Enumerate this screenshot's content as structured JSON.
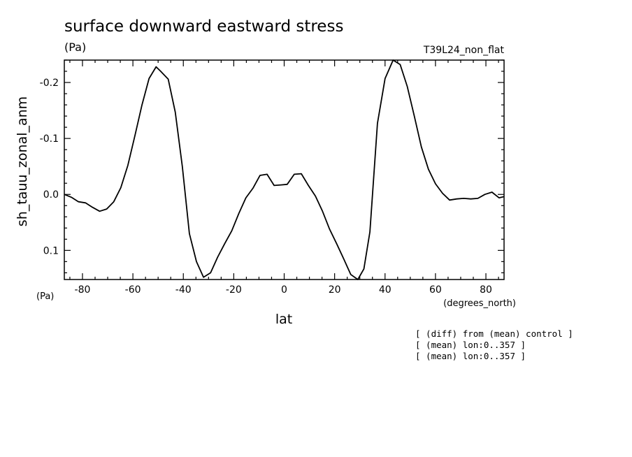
{
  "chart_data": {
    "type": "line",
    "title": "surface downward eastward stress",
    "units_label": "(Pa)",
    "run_label": "T39L24_non_flat",
    "xlabel": "lat",
    "x_units": "(degrees_north)",
    "ylabel": "sh_tauu_zonal_anm",
    "y_units": "(Pa)",
    "xlim": [
      -87.2,
      87.2
    ],
    "ylim": [
      -0.24,
      0.152
    ],
    "y_inverted": true,
    "x_ticks": [
      -80,
      -60,
      -40,
      -20,
      0,
      20,
      40,
      60,
      80
    ],
    "y_ticks": [
      -0.2,
      -0.1,
      0.0,
      0.1
    ],
    "y_tick_labels": [
      "-0.2",
      "-0.1",
      "0.0",
      "0.1"
    ],
    "x_tick_labels": [
      "-80",
      "-60",
      "-40",
      "-20",
      "0",
      "20",
      "40",
      "60",
      "80"
    ],
    "series": [
      {
        "x": [
          -87.2,
          -84.4,
          -81.6,
          -78.8,
          -76.0,
          -73.2,
          -70.4,
          -67.6,
          -64.8,
          -62.0,
          -59.2,
          -56.4,
          -53.6,
          -50.8,
          -49.0,
          -46.0,
          -43.2,
          -40.4,
          -37.6,
          -34.8,
          -32.0,
          -29.2,
          -26.4,
          -23.6,
          -20.8,
          -18.0,
          -15.2,
          -12.4,
          -9.6,
          -6.8,
          -4.0,
          -1.2,
          1.2,
          4.0,
          6.8,
          9.6,
          12.4,
          15.2,
          18.0,
          20.8,
          23.6,
          26.4,
          29.2,
          31.6,
          34.0,
          37.0,
          40.0,
          43.2,
          46.0,
          48.8,
          51.6,
          54.4,
          57.2,
          60.0,
          62.8,
          65.6,
          68.4,
          71.2,
          74.0,
          76.8,
          79.6,
          82.4,
          85.2,
          87.2
        ],
        "y": [
          0.0,
          0.005,
          0.013,
          0.015,
          0.023,
          0.03,
          0.026,
          0.013,
          -0.012,
          -0.052,
          -0.105,
          -0.16,
          -0.207,
          -0.228,
          -0.22,
          -0.206,
          -0.147,
          -0.05,
          0.07,
          0.12,
          0.148,
          0.14,
          0.112,
          0.088,
          0.065,
          0.034,
          0.006,
          -0.011,
          -0.034,
          -0.036,
          -0.016,
          -0.017,
          -0.018,
          -0.036,
          -0.037,
          -0.016,
          0.003,
          0.03,
          0.062,
          0.088,
          0.115,
          0.143,
          0.154,
          0.133,
          0.067,
          -0.127,
          -0.207,
          -0.24,
          -0.232,
          -0.193,
          -0.14,
          -0.085,
          -0.045,
          -0.019,
          -0.002,
          0.01,
          0.008,
          0.007,
          0.008,
          0.007,
          0.0,
          -0.004,
          0.006,
          0.004
        ]
      }
    ]
  },
  "footer_notes": [
    "[ (diff) from (mean) control ]",
    "[ (mean) lon:0..357 ]",
    "[ (mean) lon:0..357 ]"
  ]
}
